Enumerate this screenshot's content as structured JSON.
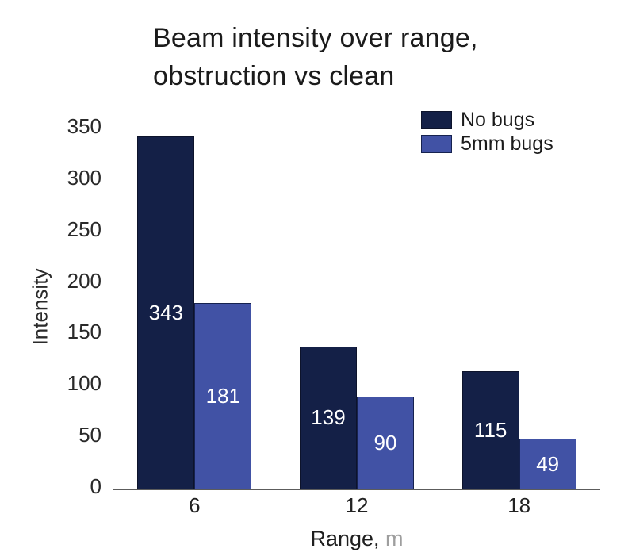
{
  "chart_data": {
    "type": "bar",
    "title": "Beam intensity over range, obstruction vs clean",
    "title_lines": [
      "Beam intensity over range,",
      "obstruction vs clean"
    ],
    "categories": [
      "6",
      "12",
      "18"
    ],
    "series": [
      {
        "name": "No bugs",
        "values": [
          343,
          139,
          115
        ],
        "color": "#142047",
        "border": "#0d132b"
      },
      {
        "name": "5mm bugs",
        "values": [
          181,
          90,
          49
        ],
        "color": "#4152a5",
        "border": "#16224f"
      }
    ],
    "xlabel": "Range,",
    "xlabel_unit": "m",
    "ylabel": "Intensity",
    "ylim": [
      0,
      350
    ],
    "yticks": [
      0,
      50,
      100,
      150,
      200,
      250,
      300,
      350
    ],
    "grid": false,
    "legend_position": "top-right",
    "bar_value_labels": true
  },
  "colors": {
    "bar_navy": "#142047",
    "bar_blue": "#4152a5",
    "value_label": "#ffffff",
    "unit_gray": "#9e9e9e",
    "axis_line": "#5c5c5c",
    "text": "#1b1b1b"
  }
}
